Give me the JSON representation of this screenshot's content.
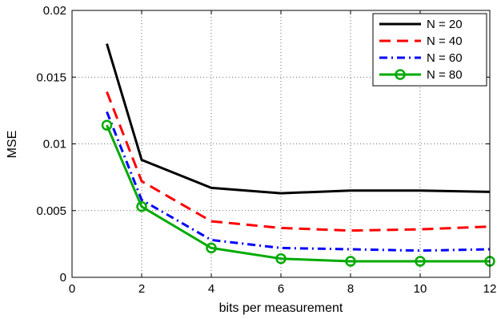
{
  "chart_data": {
    "type": "line",
    "xlabel": "bits per measurement",
    "ylabel": "MSE",
    "xlim": [
      0,
      12
    ],
    "ylim": [
      0,
      0.02
    ],
    "xticks": [
      "0",
      "2",
      "4",
      "6",
      "8",
      "10",
      "12"
    ],
    "yticks": [
      "0",
      "0.005",
      "0.01",
      "0.015",
      "0.02"
    ],
    "grid": true,
    "legend_position": "top-right",
    "x": [
      1,
      2,
      4,
      6,
      8,
      10,
      12
    ],
    "series": [
      {
        "name": "N = 20",
        "color": "#000000",
        "style": "solid",
        "marker": "none",
        "values": [
          0.0175,
          0.0088,
          0.0067,
          0.0063,
          0.0065,
          0.0065,
          0.0064
        ]
      },
      {
        "name": "N = 40",
        "color": "#ff0000",
        "style": "dashed",
        "marker": "none",
        "values": [
          0.0139,
          0.0072,
          0.0042,
          0.0037,
          0.0035,
          0.0036,
          0.0038
        ]
      },
      {
        "name": "N = 60",
        "color": "#0000ff",
        "style": "dashdot",
        "marker": "none",
        "values": [
          0.0124,
          0.0058,
          0.0028,
          0.0022,
          0.0021,
          0.002,
          0.0021
        ]
      },
      {
        "name": "N = 80",
        "color": "#00aa00",
        "style": "solid",
        "marker": "circle",
        "values": [
          0.0114,
          0.0053,
          0.0022,
          0.0014,
          0.0012,
          0.0012,
          0.0012
        ]
      }
    ]
  }
}
